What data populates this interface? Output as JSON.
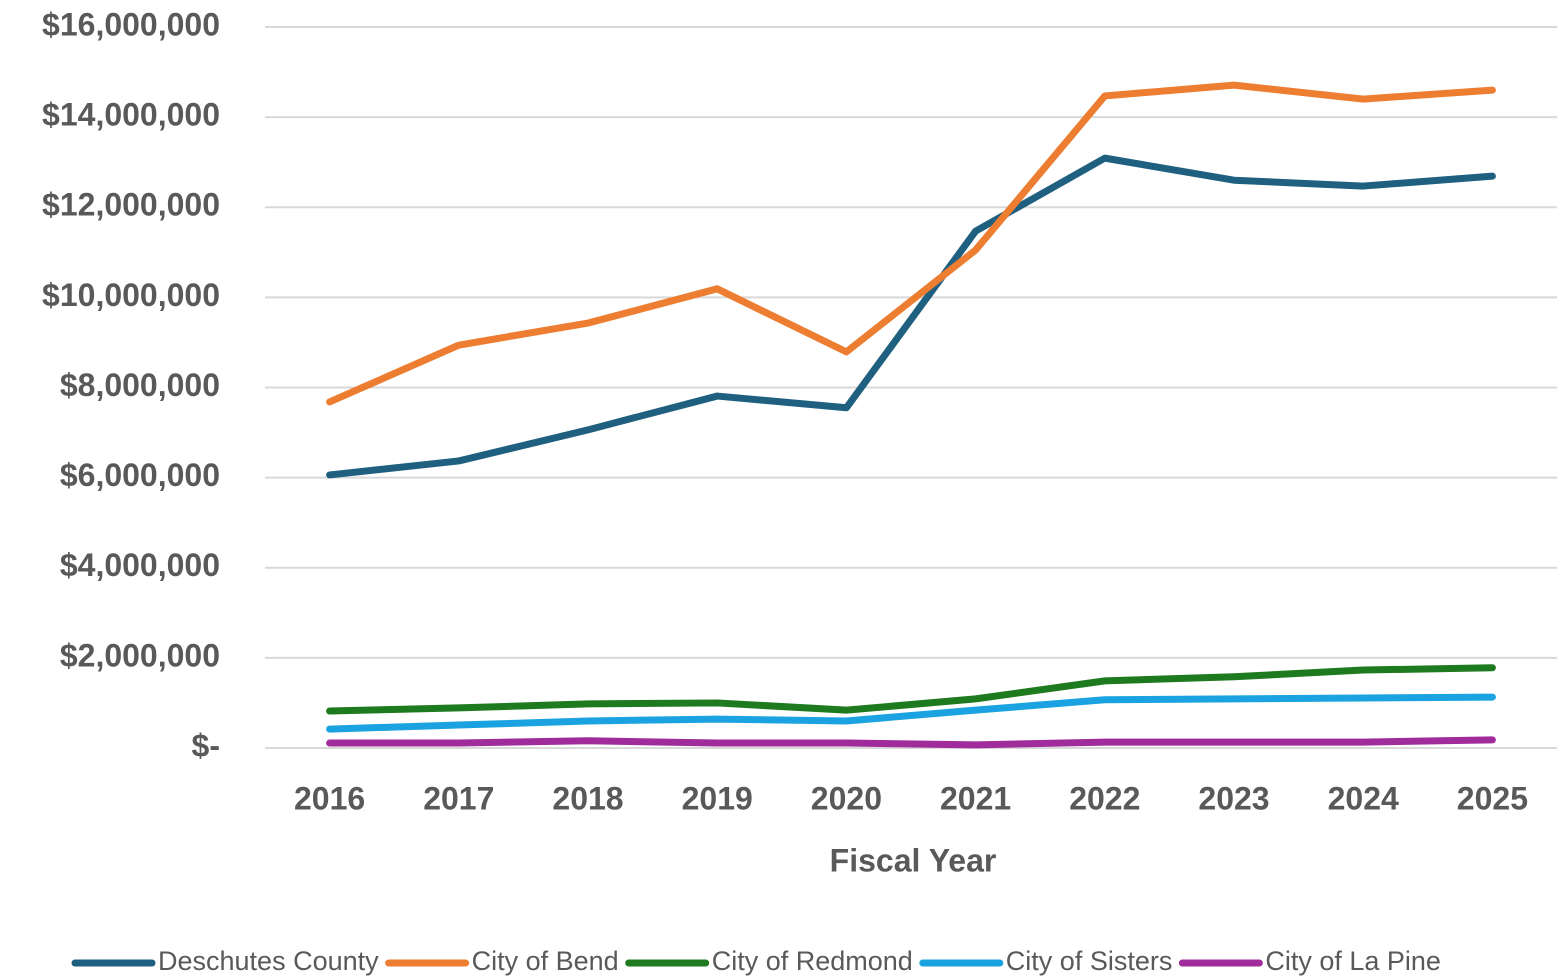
{
  "chart_data": {
    "type": "line",
    "x_label": "Fiscal Year",
    "categories": [
      "2016",
      "2017",
      "2018",
      "2019",
      "2020",
      "2021",
      "2022",
      "2023",
      "2024",
      "2025"
    ],
    "series": [
      {
        "name": "Deschutes County",
        "color": "#1f5f7f",
        "values": [
          6060000,
          6370000,
          7060000,
          7810000,
          7550000,
          11470000,
          13090000,
          12600000,
          12470000,
          12690000
        ]
      },
      {
        "name": "City of Bend",
        "color": "#ed7d31",
        "values": [
          7680000,
          8940000,
          9430000,
          10190000,
          8790000,
          11050000,
          14470000,
          14710000,
          14400000,
          14600000
        ]
      },
      {
        "name": "City of Redmond",
        "color": "#1e7a1e",
        "values": [
          820000,
          890000,
          980000,
          1000000,
          840000,
          1090000,
          1490000,
          1580000,
          1730000,
          1780000
        ]
      },
      {
        "name": "City of Sisters",
        "color": "#1aa3e0",
        "values": [
          420000,
          510000,
          600000,
          640000,
          600000,
          840000,
          1070000,
          1090000,
          1110000,
          1130000
        ]
      },
      {
        "name": "City of La Pine",
        "color": "#a02b9b",
        "values": [
          110000,
          110000,
          160000,
          110000,
          110000,
          70000,
          130000,
          130000,
          130000,
          180000
        ]
      }
    ],
    "ylim": [
      0,
      16000000
    ],
    "yticks": [
      {
        "value": 0,
        "label": "$-"
      },
      {
        "value": 2000000,
        "label": "$2,000,000"
      },
      {
        "value": 4000000,
        "label": "$4,000,000"
      },
      {
        "value": 6000000,
        "label": "$6,000,000"
      },
      {
        "value": 8000000,
        "label": "$8,000,000"
      },
      {
        "value": 10000000,
        "label": "$10,000,000"
      },
      {
        "value": 12000000,
        "label": "$12,000,000"
      },
      {
        "value": 14000000,
        "label": "$14,000,000"
      },
      {
        "value": 16000000,
        "label": "$16,000,000"
      }
    ],
    "grid": true,
    "legend": "bottom"
  }
}
